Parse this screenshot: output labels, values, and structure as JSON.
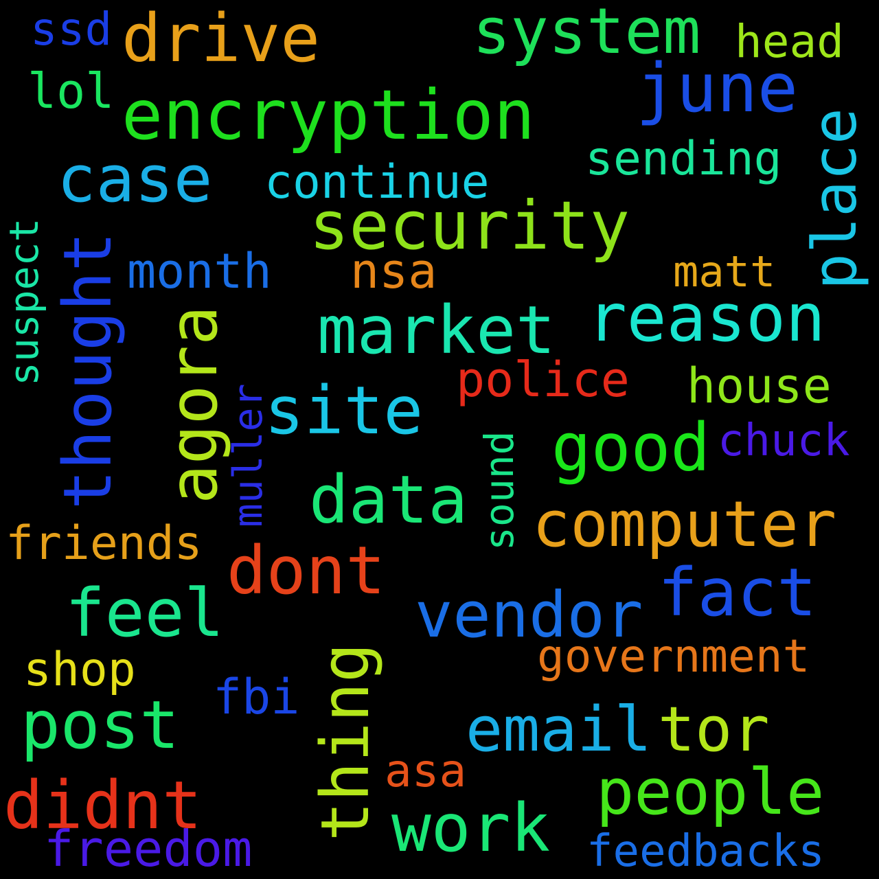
{
  "words": {
    "encryption": {
      "text": "encryption",
      "color": "#1ee01e"
    },
    "security": {
      "text": "security",
      "color": "#8ee21a"
    },
    "system": {
      "text": "system",
      "color": "#1ee05a"
    },
    "drive": {
      "text": "drive",
      "color": "#e8a01a"
    },
    "june": {
      "text": "june",
      "color": "#1a4ee6"
    },
    "case": {
      "text": "case",
      "color": "#1aaee6"
    },
    "place": {
      "text": "place",
      "color": "#1ac6e6"
    },
    "thought": {
      "text": "thought",
      "color": "#1a3ee6"
    },
    "market": {
      "text": "market",
      "color": "#1ae6b0"
    },
    "reason": {
      "text": "reason",
      "color": "#1ae6d0"
    },
    "agora": {
      "text": "agora",
      "color": "#b4e61a"
    },
    "site": {
      "text": "site",
      "color": "#1ac6e6"
    },
    "good": {
      "text": "good",
      "color": "#1ae61a"
    },
    "data": {
      "text": "data",
      "color": "#1ae676"
    },
    "computer": {
      "text": "computer",
      "color": "#e8a01a"
    },
    "dont": {
      "text": "dont",
      "color": "#e6421a"
    },
    "fact": {
      "text": "fact",
      "color": "#1a4ee6"
    },
    "vendor": {
      "text": "vendor",
      "color": "#1a6ee6"
    },
    "feel": {
      "text": "feel",
      "color": "#1ae68e"
    },
    "post": {
      "text": "post",
      "color": "#1ae66a"
    },
    "thing": {
      "text": "thing",
      "color": "#b4e61a"
    },
    "email": {
      "text": "email",
      "color": "#1aaee6"
    },
    "tor": {
      "text": "tor",
      "color": "#b4e61a"
    },
    "people": {
      "text": "people",
      "color": "#46e61a"
    },
    "didnt": {
      "text": "didnt",
      "color": "#e6321a"
    },
    "work": {
      "text": "work",
      "color": "#1ae676"
    },
    "ssd": {
      "text": "ssd",
      "color": "#1a3ee6"
    },
    "head": {
      "text": "head",
      "color": "#9ee61a"
    },
    "lol": {
      "text": "lol",
      "color": "#1ae660"
    },
    "sending": {
      "text": "sending",
      "color": "#1ae69a"
    },
    "continue": {
      "text": "continue",
      "color": "#1ad2e6"
    },
    "month": {
      "text": "month",
      "color": "#1a6ee6"
    },
    "nsa": {
      "text": "nsa",
      "color": "#e6861a"
    },
    "matt": {
      "text": "matt",
      "color": "#e6a81a"
    },
    "suspect": {
      "text": "suspect",
      "color": "#1ae6a6"
    },
    "muller": {
      "text": "muller",
      "color": "#2a2ee6"
    },
    "police": {
      "text": "police",
      "color": "#e62a1a"
    },
    "house": {
      "text": "house",
      "color": "#8ee61a"
    },
    "chuck": {
      "text": "chuck",
      "color": "#4a1ae6"
    },
    "sound": {
      "text": "sound",
      "color": "#1ae68a"
    },
    "friends": {
      "text": "friends",
      "color": "#e6a01a"
    },
    "government": {
      "text": "government",
      "color": "#e6761a"
    },
    "shop": {
      "text": "shop",
      "color": "#e6e01a"
    },
    "fbi": {
      "text": "fbi",
      "color": "#1a46e6"
    },
    "asa": {
      "text": "asa",
      "color": "#e6521a"
    },
    "freedom": {
      "text": "freedom",
      "color": "#4a1ae6"
    },
    "feedbacks": {
      "text": "feedbacks",
      "color": "#1a6ee6"
    }
  }
}
